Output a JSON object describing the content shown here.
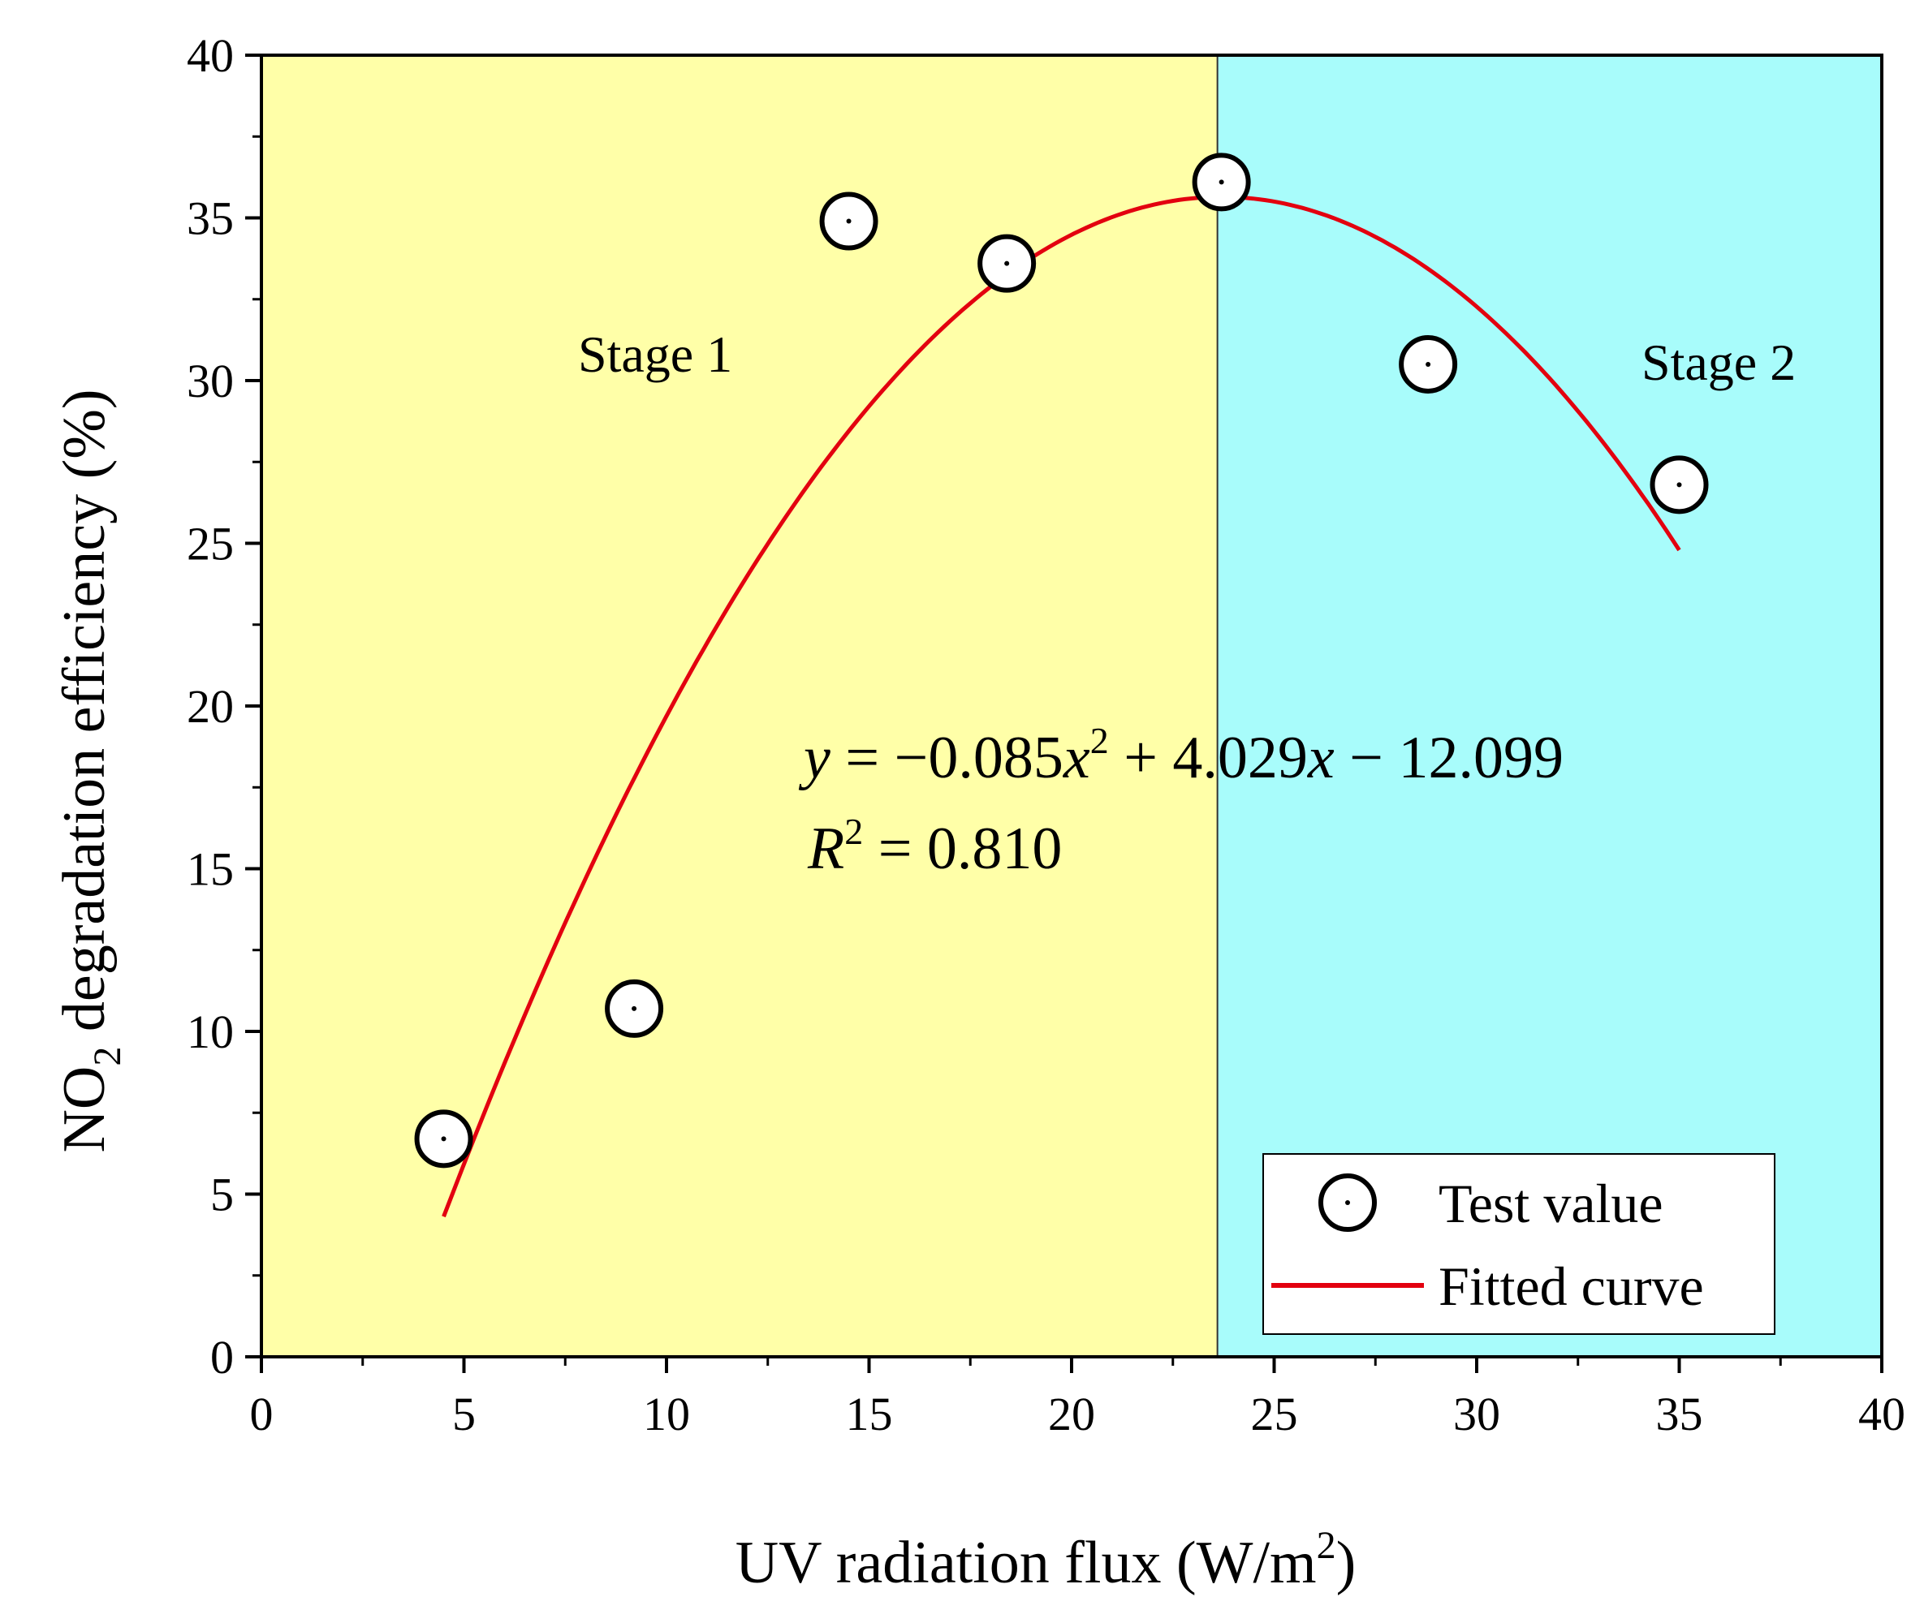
{
  "chart_data": {
    "type": "scatter",
    "title": "",
    "xlabel": {
      "main": "UV radiation flux (W/m",
      "sup": "2",
      "end": ")"
    },
    "ylabel": {
      "pre": "NO",
      "sub": "2",
      "post": " degradation efficiency (%)"
    },
    "xlim": [
      0,
      40
    ],
    "ylim": [
      0,
      40
    ],
    "x_ticks": [
      0,
      5,
      10,
      15,
      20,
      25,
      30,
      35,
      40
    ],
    "y_ticks": [
      0,
      5,
      10,
      15,
      20,
      25,
      30,
      35,
      40
    ],
    "x_tick_labels": [
      "0",
      "5",
      "10",
      "15",
      "20",
      "25",
      "30",
      "35",
      "40"
    ],
    "y_tick_labels": [
      "0",
      "5",
      "10",
      "15",
      "20",
      "25",
      "30",
      "35",
      "40"
    ],
    "x_minor_step": 2.5,
    "y_minor_step": 2.5,
    "series": [
      {
        "name": "Test value",
        "type": "scatter",
        "marker": "circle-dot",
        "x": [
          4.5,
          9.2,
          14.5,
          18.4,
          23.7,
          28.8,
          35.0
        ],
        "y": [
          6.7,
          10.7,
          34.9,
          33.6,
          36.1,
          30.5,
          26.8
        ]
      },
      {
        "name": "Fitted curve",
        "type": "line",
        "color": "#e3000f",
        "x_range": [
          4.5,
          35.0
        ],
        "coefficients": {
          "a": -0.085,
          "b": 4.029,
          "c": -12.099
        }
      }
    ],
    "regions": [
      {
        "name": "Stage 1",
        "x_range": [
          0,
          23.6
        ],
        "color": "#ffffa8"
      },
      {
        "name": "Stage 2",
        "x_range": [
          23.6,
          40
        ],
        "color": "#a8fcfb"
      }
    ],
    "annotations": {
      "stage1": "Stage 1",
      "stage2": "Stage 2",
      "equation": {
        "y": "y",
        "p1": " = −0.085",
        "x1": "x",
        "sup1": "2",
        "p2": " + 4.029",
        "x2": "x",
        "p3": " − 12.099"
      },
      "r2": {
        "r": "R",
        "sup": "2",
        "value": " = 0.810"
      }
    },
    "legend": {
      "position": "bottom-right",
      "entries": [
        "Test value",
        "Fitted curve"
      ]
    }
  }
}
